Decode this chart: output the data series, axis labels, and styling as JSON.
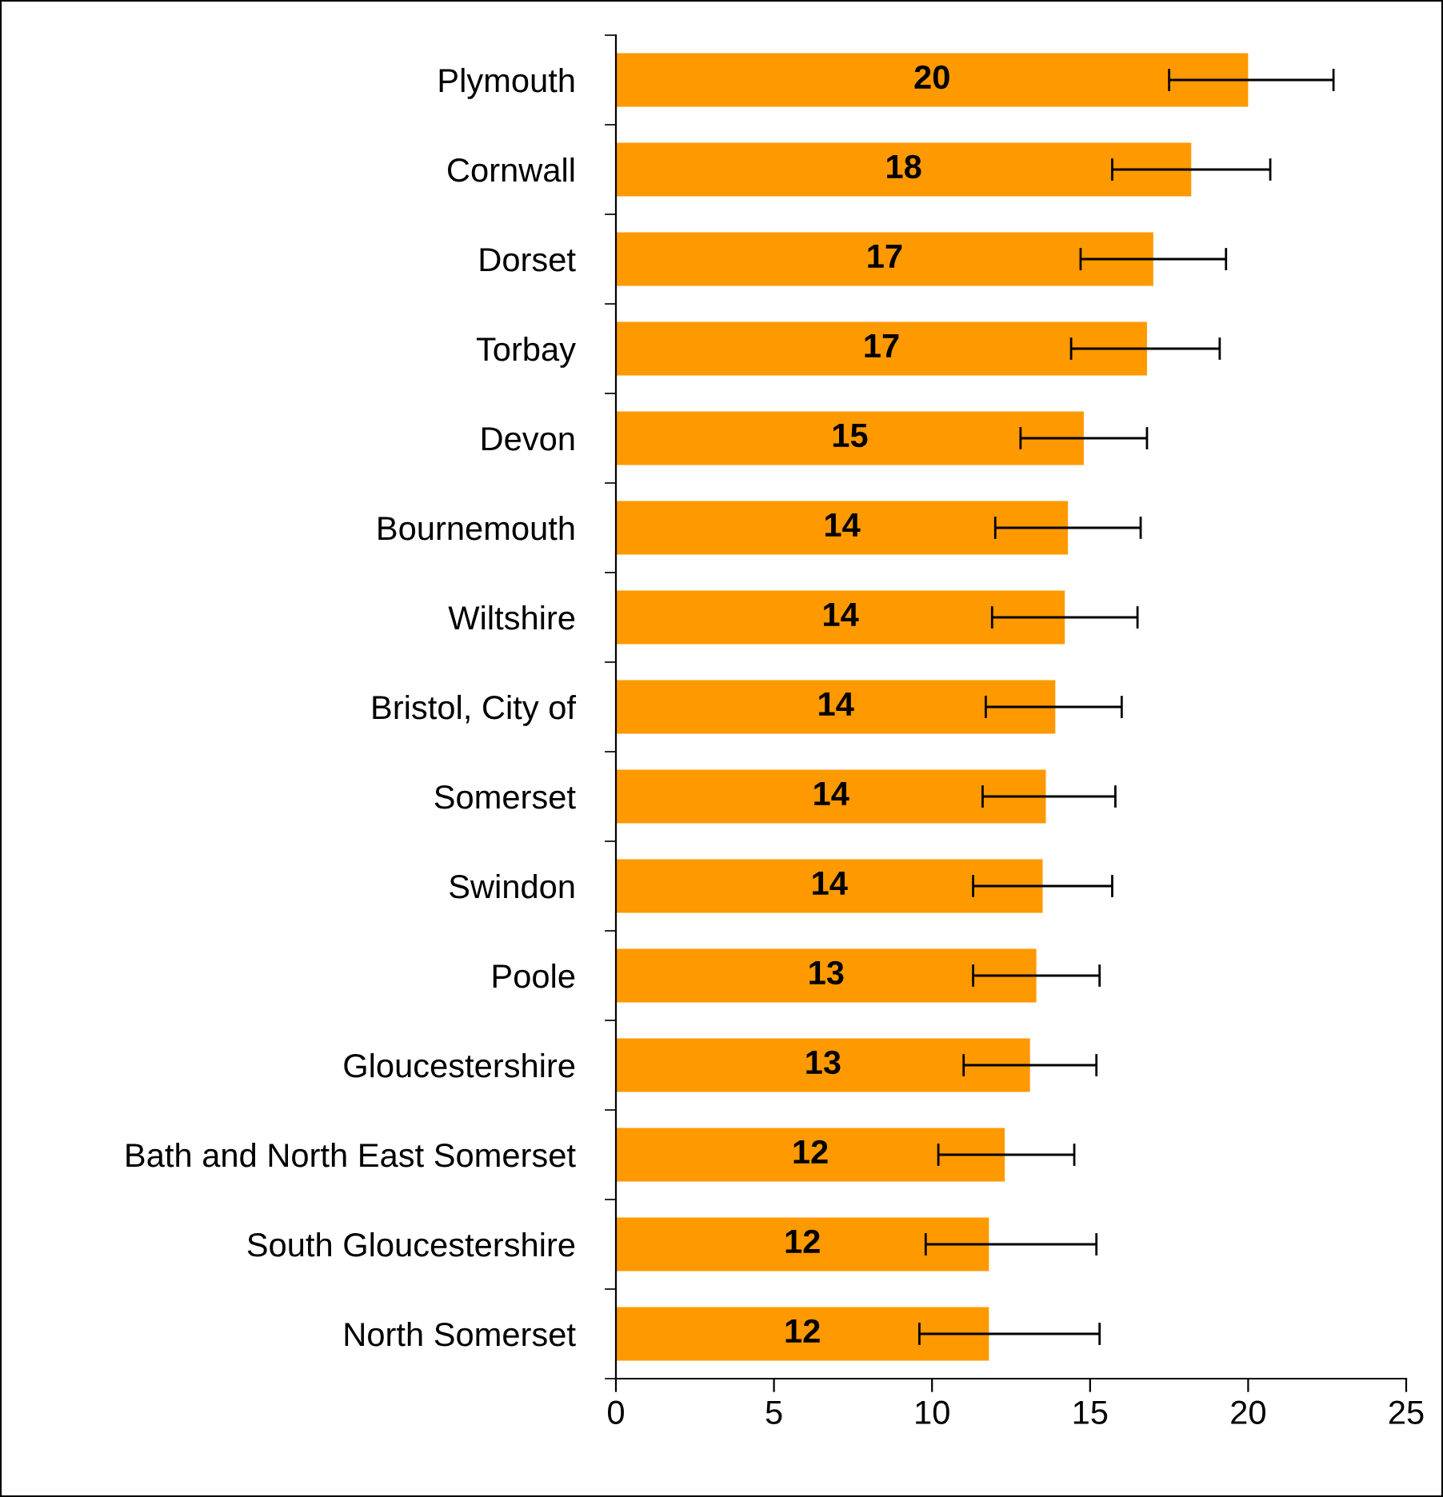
{
  "chart_data": {
    "type": "bar",
    "orientation": "horizontal",
    "color": "#ff9900",
    "categories": [
      "Plymouth",
      "Cornwall",
      "Dorset",
      "Torbay",
      "Devon",
      "Bournemouth",
      "Wiltshire",
      "Bristol, City of",
      "Somerset",
      "Swindon",
      "Poole",
      "Gloucestershire",
      "Bath and North East Somerset",
      "South Gloucestershire",
      "North Somerset"
    ],
    "values": [
      20.0,
      18.2,
      17.0,
      16.8,
      14.8,
      14.3,
      14.2,
      13.9,
      13.6,
      13.5,
      13.3,
      13.1,
      12.3,
      11.8,
      11.8
    ],
    "value_labels": [
      "20",
      "18",
      "17",
      "17",
      "15",
      "14",
      "14",
      "14",
      "14",
      "14",
      "13",
      "13",
      "12",
      "12",
      "12"
    ],
    "errors": [
      [
        17.5,
        22.7
      ],
      [
        15.7,
        20.7
      ],
      [
        14.7,
        19.3
      ],
      [
        14.4,
        19.1
      ],
      [
        12.8,
        16.8
      ],
      [
        12.0,
        16.6
      ],
      [
        11.9,
        16.5
      ],
      [
        11.7,
        16.0
      ],
      [
        11.6,
        15.8
      ],
      [
        11.3,
        15.7
      ],
      [
        11.3,
        15.3
      ],
      [
        11.0,
        15.2
      ],
      [
        10.2,
        14.5
      ],
      [
        9.8,
        15.2
      ],
      [
        9.6,
        15.3
      ]
    ],
    "xlim": [
      0,
      25
    ],
    "xticks": [
      0,
      5,
      10,
      15,
      20,
      25
    ],
    "grid": false,
    "legend": false
  }
}
